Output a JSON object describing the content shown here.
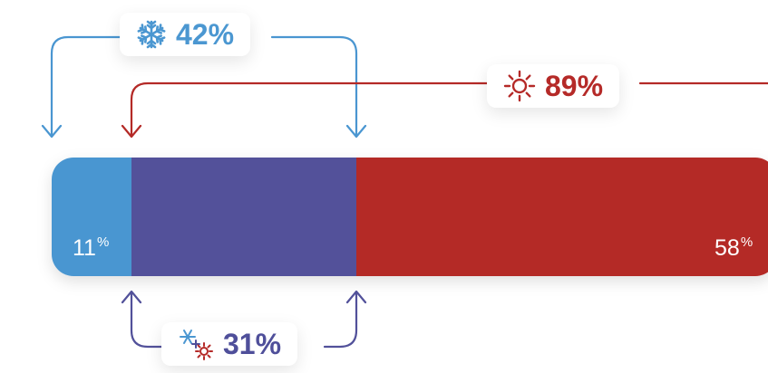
{
  "chart_data": {
    "type": "bar",
    "orientation": "horizontal-stacked",
    "segments": [
      {
        "value": 11,
        "label": "11",
        "unit": "%",
        "color": "#4a96d1"
      },
      {
        "value": 31,
        "label": "",
        "unit": "",
        "color": "#52519a"
      },
      {
        "value": 58,
        "label": "58",
        "unit": "%",
        "color": "#b42a27"
      }
    ],
    "brackets": [
      {
        "id": "cold",
        "value": "42%",
        "spans": [
          0,
          1
        ],
        "color": "#4a96d1",
        "icon": "snowflake-icon",
        "position": "above"
      },
      {
        "id": "hot",
        "value": "89%",
        "spans": [
          1,
          2
        ],
        "color": "#b42a27",
        "icon": "sun-icon",
        "position": "above"
      },
      {
        "id": "mixed",
        "value": "31%",
        "spans": [
          1,
          1
        ],
        "color": "#52519a",
        "icon": "snowflake-plus-sun-icon",
        "position": "below"
      }
    ]
  }
}
